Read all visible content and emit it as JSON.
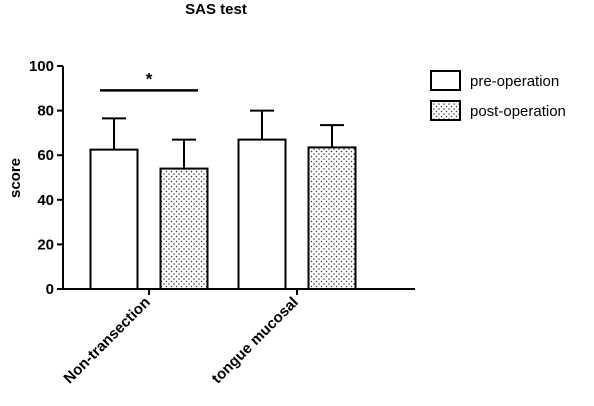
{
  "chart_data": {
    "type": "bar",
    "title": "SAS test",
    "xlabel": "",
    "ylabel": "score",
    "ylim": [
      0,
      100
    ],
    "yticks": [
      0,
      20,
      40,
      60,
      80,
      100
    ],
    "categories": [
      "Non-transection",
      "tongue mucosal"
    ],
    "series": [
      {
        "name": "pre-operation",
        "values": [
          62.5,
          67
        ],
        "errors": [
          14,
          13
        ],
        "pattern": "solid-white"
      },
      {
        "name": "post-operation",
        "values": [
          54,
          63.5
        ],
        "errors": [
          13,
          10
        ],
        "pattern": "dotted"
      }
    ],
    "legend": {
      "position": "top-right"
    },
    "annotations": [
      {
        "text": "*",
        "between": [
          "Non-transection:pre-operation",
          "Non-transection:post-operation"
        ]
      }
    ],
    "grid": false,
    "colors": {
      "bar_fill": "#ffffff",
      "bar_stroke": "#000000",
      "dot": "#333333"
    }
  }
}
